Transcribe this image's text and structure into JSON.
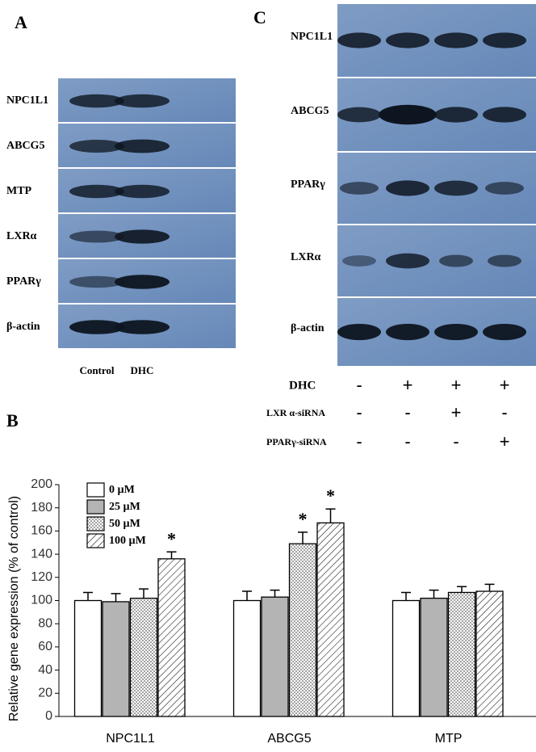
{
  "panel_a": {
    "label": "A",
    "rows": [
      "NPC1L1",
      "ABCG5",
      "MTP",
      "LXRα",
      "PPARγ",
      "β-actin"
    ],
    "lanes": [
      "Control",
      "DHC"
    ]
  },
  "panel_c": {
    "label": "C",
    "rows": [
      "NPC1L1",
      "ABCG5",
      "PPARγ",
      "LXRα",
      "β-actin"
    ],
    "treatments": [
      {
        "label": "DHC",
        "signs": [
          "-",
          "+",
          "+",
          "+"
        ]
      },
      {
        "label": "LXR α-siRNA",
        "signs": [
          "-",
          "-",
          "+",
          "-"
        ]
      },
      {
        "label": "PPARγ-siRNA",
        "signs": [
          "-",
          "-",
          "-",
          "+"
        ]
      }
    ]
  },
  "panel_b": {
    "label": "B"
  },
  "chart_data": {
    "type": "bar",
    "ylabel": "Relative gene expression (% of control)",
    "categories": [
      "NPC1L1",
      "ABCG5",
      "MTP"
    ],
    "series": [
      {
        "name": "0 µM",
        "color": "#ffffff",
        "pattern": "solid",
        "values": [
          100,
          100,
          100
        ],
        "errors": [
          7,
          8,
          7
        ],
        "labels": [
          null,
          null,
          null
        ]
      },
      {
        "name": "25 µM",
        "color": "#b4b4b4",
        "pattern": "solid",
        "values": [
          99,
          103,
          102
        ],
        "errors": [
          7,
          6,
          7
        ],
        "labels": [
          null,
          null,
          null
        ]
      },
      {
        "name": "50 µM",
        "color": "#ffffff",
        "pattern": "dots",
        "values": [
          102,
          149,
          107
        ],
        "errors": [
          8,
          10,
          5
        ],
        "labels": [
          null,
          "*",
          null
        ]
      },
      {
        "name": "100 µM",
        "color": "#ffffff",
        "pattern": "hatch",
        "values": [
          136,
          167,
          108
        ],
        "errors": [
          6,
          12,
          6
        ],
        "labels": [
          "*",
          "*",
          null
        ]
      }
    ],
    "ylim": [
      0,
      200
    ],
    "yticks": [
      0,
      20,
      40,
      60,
      80,
      100,
      120,
      140,
      160,
      180,
      200
    ]
  }
}
